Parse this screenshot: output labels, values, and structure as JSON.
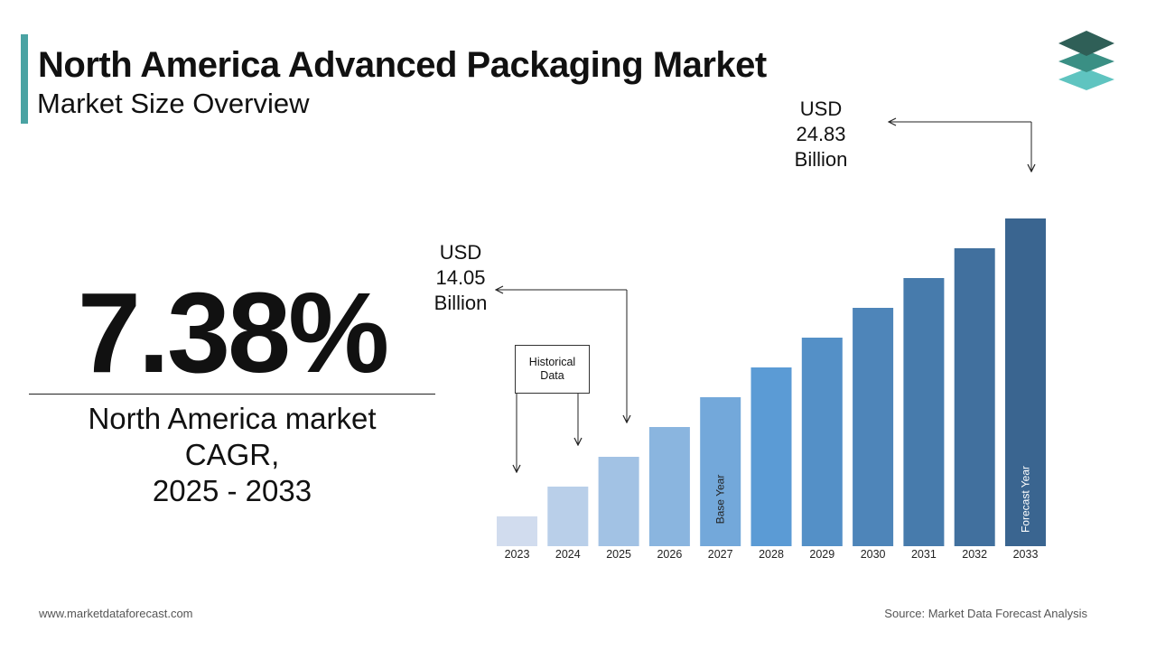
{
  "header": {
    "title": "North America Advanced Packaging Market",
    "subtitle": "Market Size Overview"
  },
  "colors": {
    "accent": "#4aa3a3",
    "bar_light": "#d1dcee",
    "bar_mid": "#5b9bd5",
    "bar_dark": "#3a6590"
  },
  "cagr": {
    "value": "7.38%",
    "caption_lines": [
      "North America market",
      "CAGR,",
      "2025 - 2033"
    ]
  },
  "callouts": {
    "start": {
      "lines": [
        "USD",
        "14.05",
        "Billion"
      ]
    },
    "end": {
      "lines": [
        "USD",
        "24.83",
        "Billion"
      ]
    }
  },
  "historical_box": {
    "lines": [
      "Historical",
      "Data"
    ]
  },
  "chart_data": {
    "type": "bar",
    "categories": [
      "2023",
      "2024",
      "2025",
      "2026",
      "2027",
      "2028",
      "2029",
      "2030",
      "2031",
      "2032",
      "2033"
    ],
    "values": [
      1,
      2,
      3,
      4,
      5,
      6,
      7,
      8,
      9,
      10,
      11
    ],
    "bar_labels": {
      "2027": "Base Year",
      "2033": "Forecast Year"
    },
    "grid": false,
    "legend": "none"
  },
  "footer": {
    "website": "www.marketdataforecast.com",
    "source": "Source: Market Data Forecast Analysis"
  }
}
